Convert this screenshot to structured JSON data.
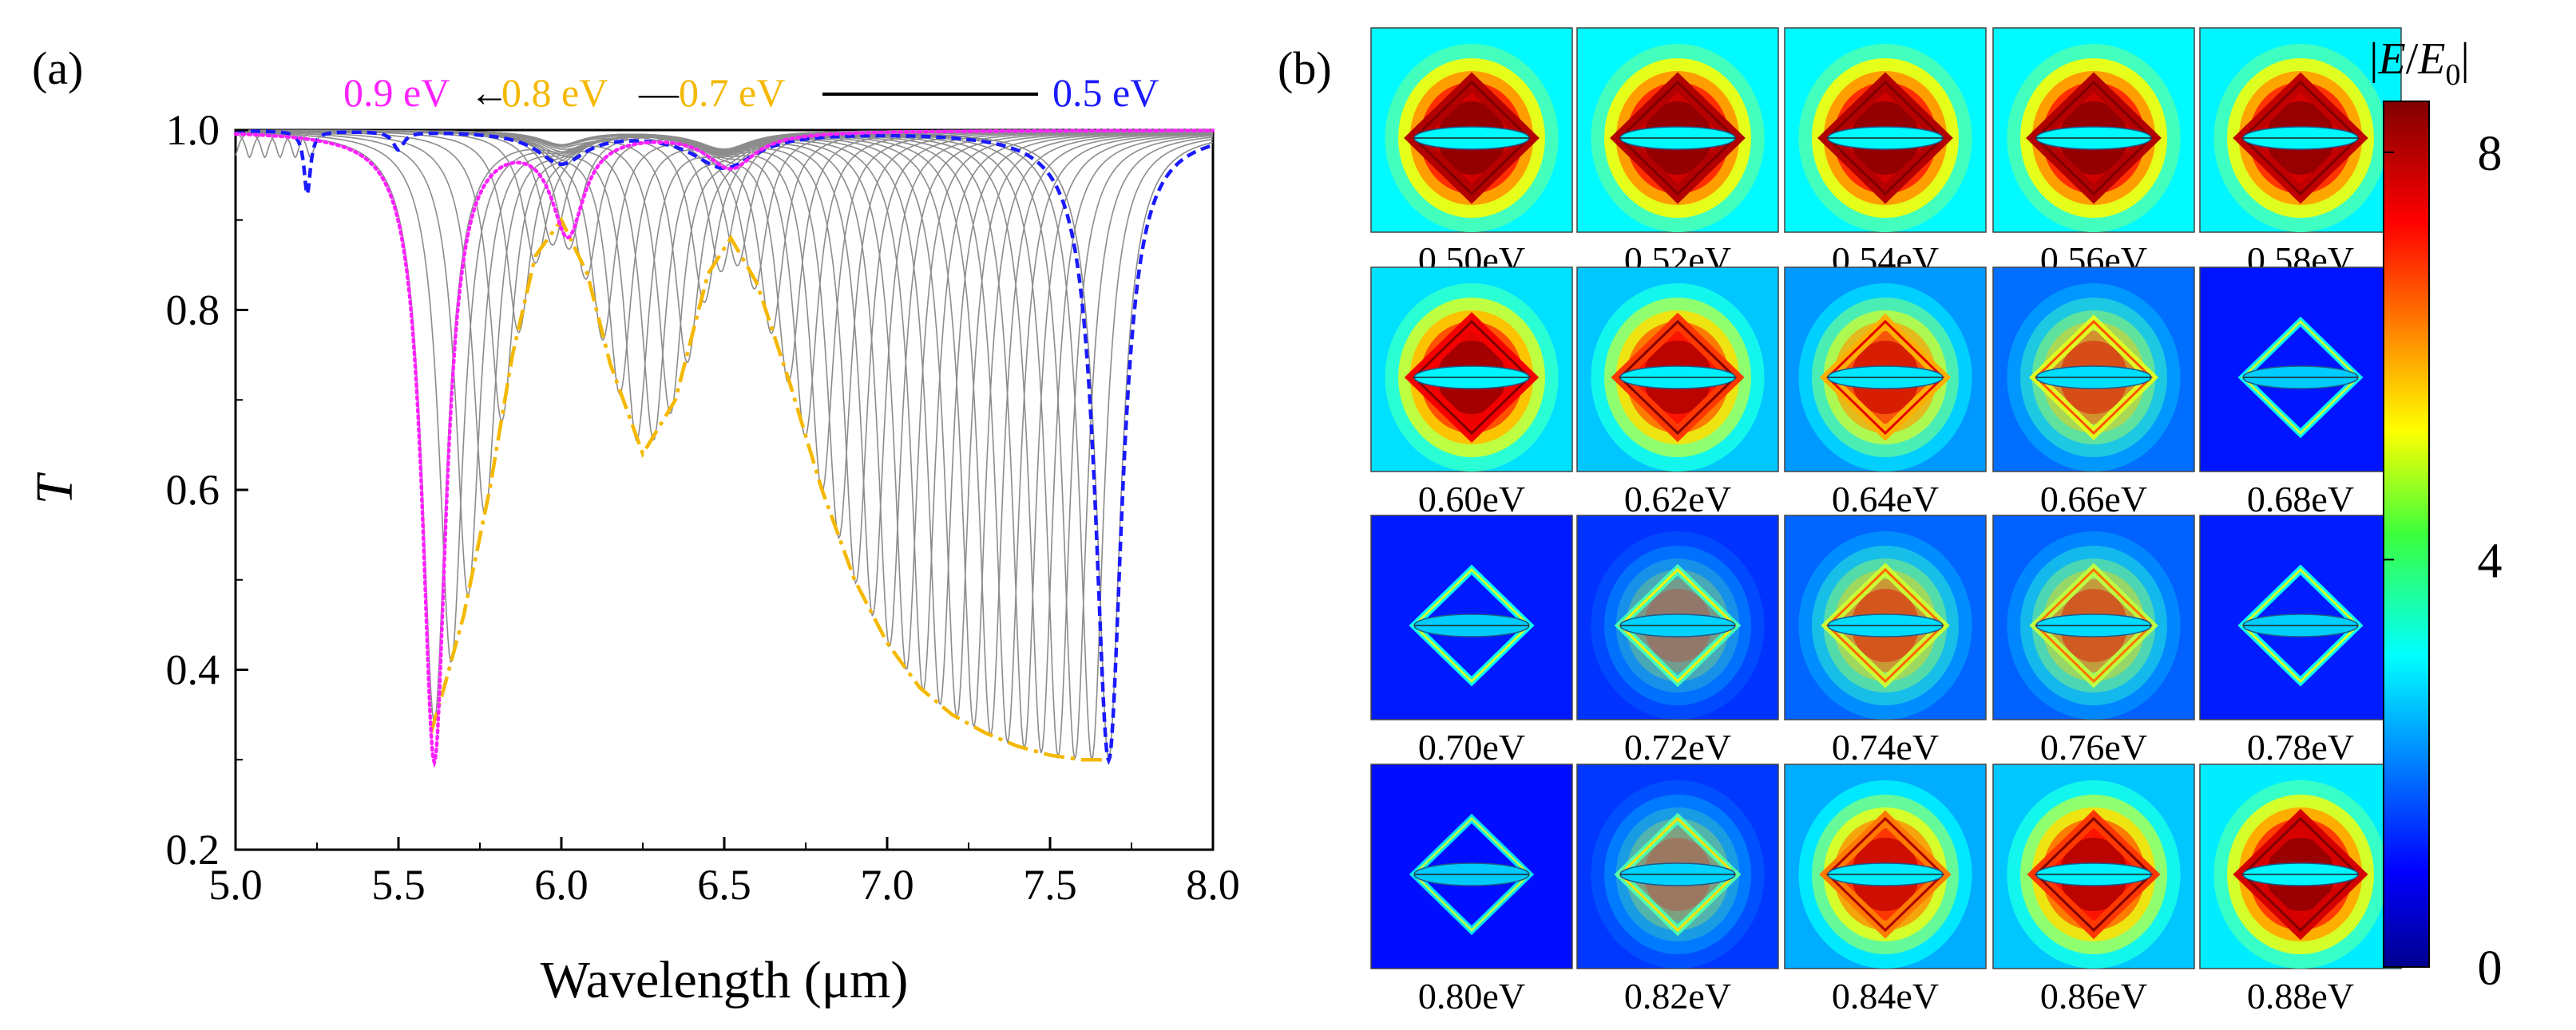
{
  "chart_data": [
    {
      "panel": "(a)",
      "type": "line",
      "title": "",
      "xlabel": "Wavelength (μm)",
      "ylabel": "T",
      "xlim": [
        5.0,
        8.0
      ],
      "ylim": [
        0.2,
        1.0
      ],
      "xticks": [
        "5.0",
        "5.5",
        "6.0",
        "6.5",
        "7.0",
        "7.5",
        "8.0"
      ],
      "yticks": [
        "0.2",
        "0.4",
        "0.6",
        "0.8",
        "1.0"
      ],
      "annotation": {
        "label_09": "0.9 eV",
        "label_08": "0.8 eV",
        "label_07": "0.7 eV",
        "label_05": "0.5 eV",
        "arrow": "←",
        "dash": "—"
      },
      "fermi_energy_sweep_eV": {
        "start": 0.5,
        "end": 0.9,
        "count": 41
      },
      "series": [
        {
          "name": "0.5 eV",
          "style": "dashed",
          "color": "#1a1aff",
          "dips": [
            {
              "x": 7.68,
              "depth": 0.7,
              "width": 0.05
            },
            {
              "x": 5.22,
              "depth": 0.07,
              "width": 0.012
            },
            {
              "x": 5.5,
              "depth": 0.02,
              "width": 0.02
            },
            {
              "x": 6.0,
              "depth": 0.035,
              "width": 0.09
            },
            {
              "x": 6.5,
              "depth": 0.04,
              "width": 0.12
            }
          ]
        },
        {
          "name": "0.9 eV",
          "style": "dotted",
          "color": "#ff22ff",
          "dips": [
            {
              "x": 5.61,
              "depth": 0.7,
              "width": 0.045
            },
            {
              "x": 6.02,
              "depth": 0.11,
              "width": 0.06
            },
            {
              "x": 6.52,
              "depth": 0.04,
              "width": 0.09
            }
          ]
        },
        {
          "name": "minimum envelope",
          "style": "dash-dot",
          "color": "#f5b800",
          "x": [
            5.6,
            5.64,
            5.7,
            5.78,
            5.85,
            5.92,
            6.0,
            6.08,
            6.15,
            6.25,
            6.35,
            6.45,
            6.52,
            6.6,
            6.7,
            6.8,
            6.9,
            7.0,
            7.1,
            7.2,
            7.3,
            7.4,
            7.5,
            7.6,
            7.66
          ],
          "y": [
            0.33,
            0.38,
            0.46,
            0.6,
            0.75,
            0.86,
            0.9,
            0.84,
            0.74,
            0.64,
            0.7,
            0.84,
            0.88,
            0.83,
            0.72,
            0.6,
            0.5,
            0.43,
            0.38,
            0.35,
            0.33,
            0.315,
            0.305,
            0.3,
            0.3
          ]
        }
      ]
    },
    {
      "panel": "(b)",
      "type": "heatmap",
      "colorbar": {
        "title_part1": "|",
        "title_E": "E",
        "title_slash": "/",
        "title_E0": "E",
        "title_sub": "0",
        "title_end": "|",
        "ticks": [
          "8",
          "4",
          "0"
        ],
        "range": [
          0,
          8.5
        ]
      },
      "cells": [
        {
          "label": "0.50eV",
          "intensity": 1.0
        },
        {
          "label": "0.52eV",
          "intensity": 1.0
        },
        {
          "label": "0.54eV",
          "intensity": 1.0
        },
        {
          "label": "0.56eV",
          "intensity": 1.0
        },
        {
          "label": "0.58eV",
          "intensity": 0.98
        },
        {
          "label": "0.60eV",
          "intensity": 0.9
        },
        {
          "label": "0.62eV",
          "intensity": 0.8
        },
        {
          "label": "0.64eV",
          "intensity": 0.62
        },
        {
          "label": "0.66eV",
          "intensity": 0.45
        },
        {
          "label": "0.68eV",
          "intensity": 0.1
        },
        {
          "label": "0.70eV",
          "intensity": 0.12
        },
        {
          "label": "0.72eV",
          "intensity": 0.22
        },
        {
          "label": "0.74eV",
          "intensity": 0.42
        },
        {
          "label": "0.76eV",
          "intensity": 0.4
        },
        {
          "label": "0.78eV",
          "intensity": 0.13
        },
        {
          "label": "0.80eV",
          "intensity": 0.07
        },
        {
          "label": "0.82eV",
          "intensity": 0.24
        },
        {
          "label": "0.84eV",
          "intensity": 0.7
        },
        {
          "label": "0.86eV",
          "intensity": 0.8
        },
        {
          "label": "0.88eV",
          "intensity": 0.95
        }
      ]
    }
  ]
}
